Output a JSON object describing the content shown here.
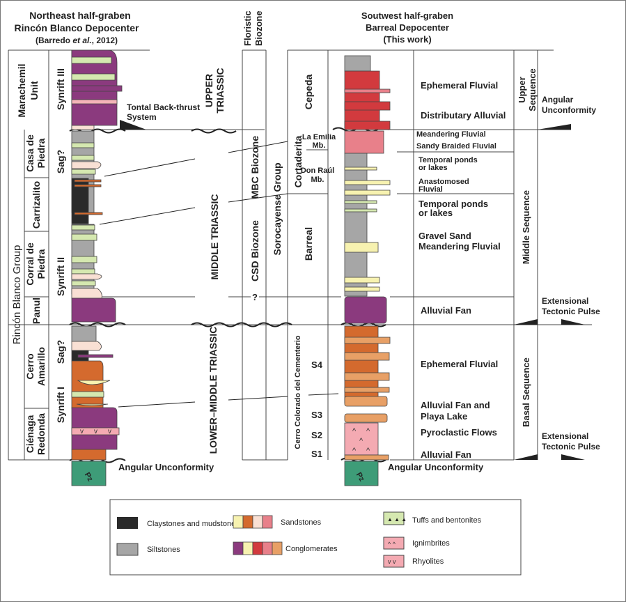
{
  "left_header": {
    "line1": "Northeast half-graben",
    "line2": "Rincón Blanco Depocenter",
    "line3a": "(Barredo ",
    "line3b": "et al.",
    "line3c": ", 2012)"
  },
  "right_header": {
    "line1": "Soutwest half-graben",
    "line2": "Barreal Depocenter",
    "line3": "(This work)"
  },
  "biozone_header": {
    "line1": "Floristic",
    "line2": "Biozone"
  },
  "left_units": {
    "group": "Rincón Blanco Group",
    "marachemil1": "Marachemil",
    "marachemil2": "Unit",
    "formations": [
      {
        "l1": "Casa de",
        "l2": "Piedra"
      },
      {
        "l1": "Carrizalito",
        "l2": ""
      },
      {
        "l1": "Corral de",
        "l2": "Piedra"
      },
      {
        "l1": "Panul",
        "l2": ""
      },
      {
        "l1": "Cerro",
        "l2": "Amarillo"
      },
      {
        "l1": "Ciénaga",
        "l2": "Redonda"
      }
    ],
    "phases": [
      "Synrift III",
      "Sag?",
      "Synrift II",
      "Sag?",
      "Synrift I"
    ]
  },
  "ages": [
    "UPPER",
    "TRIASSIC",
    "MIDDLE TRIASSIC",
    "LOWER–MIDDLE TRIASSIC"
  ],
  "annotations": {
    "tontal1": "Tontal Back-thrust",
    "tontal2": "System",
    "angular_left": "Angular Unconformity",
    "angular_right": "Angular Unconformity",
    "pz": "Pz",
    "question": "?"
  },
  "biozones": [
    "MBC Biozone",
    "CSD Biozone"
  ],
  "right_units": {
    "group": "Sorocayense Group",
    "formations": [
      "Cepeda",
      "Cortaderita",
      "Barreal",
      "Cerro Colorado del  Cementerio"
    ],
    "members": [
      {
        "l1": "La Emilia",
        "l2": "Mb."
      },
      {
        "l1": "Don Raúl",
        "l2": "Mb."
      }
    ],
    "subunits": [
      "S4",
      "S3",
      "S2",
      "S1"
    ]
  },
  "environments": [
    "Ephemeral Fluvial",
    "Distributary Alluvial",
    "Meandering Fluvial",
    "Sandy Braided Fluvial",
    "Temporal ponds",
    "or lakes",
    "Anastomosed",
    "Fluvial",
    "Temporal ponds",
    "or lakes",
    "Gravel Sand",
    "Meandering Fluvial",
    "Alluvial Fan",
    "Ephemeral Fluvial",
    "Alluvial Fan and",
    "Playa Lake",
    "Pyroclastic Flows",
    "Alluvial Fan"
  ],
  "sequences": [
    "Upper",
    "Sequence",
    "Middle Sequence",
    "Basal Sequence"
  ],
  "tectonics": {
    "ang1": "Angular",
    "ang2": "Unconformity",
    "ext1a": "Extensional",
    "ext1b": "Tectonic Pulse",
    "ext2a": "Extensional",
    "ext2b": "Tectonic Pulse"
  },
  "legend": {
    "claystones": "Claystones and mudstones",
    "siltstones": "Siltstones",
    "sandstones": "Sandstones",
    "conglomerates": "Conglomerates",
    "tuffs": "Tuffs and bentonites",
    "ignimbrites": "Ignimbrites",
    "rhyolites": "Rhyolites"
  },
  "colors": {
    "purple": "#8b3a7e",
    "orange": "#d46a2e",
    "yellow": "#f7f2b0",
    "cream": "#f9e0d4",
    "pink": "#e8808a",
    "red": "#d23a3e",
    "tan": "#e8a066",
    "green": "#d5e8b0",
    "gray": "#a6a6a6",
    "black": "#2a2a2a",
    "ignimbrite": "#f4aab2",
    "pz": "#3e9c78"
  }
}
